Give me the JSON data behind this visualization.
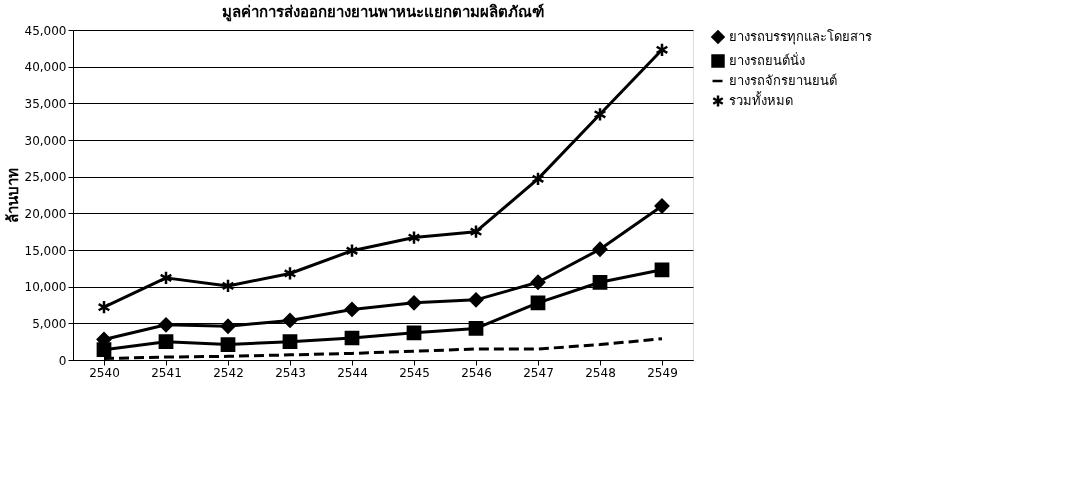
{
  "chart_data": {
    "type": "line",
    "title": "มูลค่าการส่งออกยางยานพาหนะแยกตามผลิตภัณฑ์",
    "ylabel": "ล้านบาท",
    "categories": [
      "2540",
      "2541",
      "2542",
      "2543",
      "2544",
      "2545",
      "2546",
      "2547",
      "2548",
      "2549"
    ],
    "ylim": [
      0,
      45000
    ],
    "yticks": [
      {
        "value": 0,
        "label": "0"
      },
      {
        "value": 5000,
        "label": "5,000"
      },
      {
        "value": 10000,
        "label": "10,000"
      },
      {
        "value": 15000,
        "label": "15,000"
      },
      {
        "value": 20000,
        "label": "20,000"
      },
      {
        "value": 25000,
        "label": "25,000"
      },
      {
        "value": 30000,
        "label": "30,000"
      },
      {
        "value": 35000,
        "label": "35,000"
      },
      {
        "value": 40000,
        "label": "40,000"
      },
      {
        "value": 45000,
        "label": "45,000"
      }
    ],
    "grid": "y",
    "legend": "right",
    "series": [
      {
        "name": "ยางรถบรรทุกและโดยสาร",
        "color": "#000000",
        "marker": "diamond",
        "line_style": "solid",
        "values": [
          2800,
          4800,
          4600,
          5400,
          6900,
          7800,
          8200,
          10600,
          15100,
          21000
        ]
      },
      {
        "name": "ยางรถยนต์นั่ง",
        "color": "#000000",
        "marker": "square",
        "line_style": "solid",
        "values": [
          1400,
          2500,
          2100,
          2500,
          3000,
          3700,
          4300,
          7800,
          10600,
          12300
        ]
      },
      {
        "name": "ยางรถจักรยานยนต์",
        "color": "#000000",
        "marker": "none",
        "line_style": "dashed",
        "values": [
          200,
          400,
          500,
          700,
          900,
          1200,
          1500,
          1500,
          2100,
          2900
        ]
      },
      {
        "name": "รวมทั้งหมด",
        "color": "#000000",
        "marker": "cross",
        "line_style": "solid",
        "values": [
          7200,
          11200,
          10100,
          11800,
          14900,
          16700,
          17500,
          24700,
          33500,
          42300
        ]
      }
    ]
  }
}
